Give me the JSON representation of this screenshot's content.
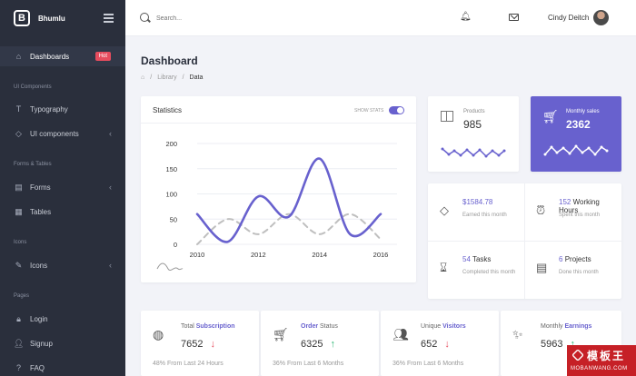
{
  "brand": {
    "name": "Bhumlu"
  },
  "sidebar": {
    "items": [
      {
        "label": "Dashboards",
        "badge": "Hot"
      },
      {
        "label": "Typography"
      },
      {
        "label": "UI components"
      },
      {
        "label": "Forms"
      },
      {
        "label": "Tables"
      },
      {
        "label": "Icons"
      },
      {
        "label": "Login"
      },
      {
        "label": "Signup"
      },
      {
        "label": "FAQ"
      }
    ],
    "sections": [
      "UI Components",
      "Forms & Tables",
      "Icons",
      "Pages"
    ]
  },
  "topbar": {
    "search_placeholder": "Search...",
    "username": "Cindy Deitch"
  },
  "page": {
    "title": "Dashboard",
    "breadcrumb": [
      "Library",
      "Data"
    ]
  },
  "statistics": {
    "title": "Statistics",
    "toggle_label": "SHOW STATS"
  },
  "chart_data": {
    "type": "line",
    "x": [
      2010,
      2011,
      2012,
      2013,
      2014,
      2015,
      2016
    ],
    "xticks": [
      "2010",
      "2012",
      "2014",
      "2016"
    ],
    "yticks": [
      "0",
      "50",
      "100",
      "150",
      "200"
    ],
    "ylim": [
      0,
      200
    ],
    "series": [
      {
        "values": [
          60,
          5,
          95,
          55,
          170,
          20,
          60
        ],
        "color": "#6861ce"
      },
      {
        "values": [
          0,
          50,
          20,
          60,
          20,
          60,
          10
        ],
        "color": "#bfbfbf",
        "dashed": true
      }
    ]
  },
  "products": {
    "label": "Products",
    "value": "985"
  },
  "monthly_sales": {
    "label": "Monthly sales",
    "value": "2362"
  },
  "metrics": [
    {
      "value": "$1584.78",
      "sub": "Earned this month",
      "icon": "diamond-icon"
    },
    {
      "value": "152",
      "value_rest": "Working Hours",
      "sub": "Spent this month",
      "icon": "clock-icon"
    },
    {
      "value": "54",
      "value_rest": "Tasks",
      "sub": "Completed this month",
      "icon": "hourglass-icon"
    },
    {
      "value": "6",
      "value_rest": "Projects",
      "sub": "Done this month",
      "icon": "news-icon"
    }
  ],
  "bottom": [
    {
      "title_a": "Total ",
      "title_b": "Subscription",
      "value": "7652",
      "trend": "down",
      "sub": "48% From Last 24 Hours"
    },
    {
      "title_a": "",
      "title_b": "Order",
      "title_c": " Status",
      "value": "6325",
      "trend": "up",
      "sub": "36% From Last 6 Months"
    },
    {
      "title_a": "Unique ",
      "title_b": "Visitors",
      "value": "652",
      "trend": "down",
      "sub": "36% From Last 6 Months"
    },
    {
      "title_a": "Monthly ",
      "title_b": "Earnings",
      "value": "5963",
      "trend": "up",
      "sub": ""
    }
  ],
  "watermark": {
    "main": "模板王",
    "sub": "MOBANWANG.COM"
  },
  "colors": {
    "accent": "#6861ce",
    "sidebar": "#2a2f3c",
    "danger": "#e74c5e",
    "success": "#2bb673"
  }
}
